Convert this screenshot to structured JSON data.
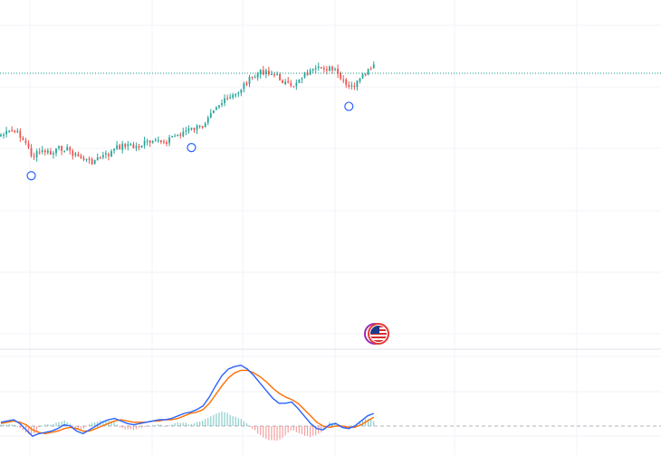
{
  "colors": {
    "up": "#26a69a",
    "down": "#ef5350",
    "grid": "#f0f3fa",
    "separator": "#e0e3eb",
    "price_line": "#089981",
    "macd_line": "#2962ff",
    "signal_line": "#ff6d00",
    "marker": "#2962ff",
    "zero_line": "#b2b5be"
  },
  "icons": {
    "event_badge": "us-flag-economic-event-icon",
    "dividend_markers": "circle-marker-icon"
  },
  "chart_data": [
    {
      "type": "candlestick",
      "pane": "price",
      "title": "",
      "grid": true,
      "last_price_line": true,
      "price_path": [
        0.4,
        0.39,
        0.38,
        0.4,
        0.45,
        0.52,
        0.5,
        0.49,
        0.51,
        0.48,
        0.47,
        0.49,
        0.52,
        0.53,
        0.55,
        0.54,
        0.52,
        0.51,
        0.48,
        0.46,
        0.45,
        0.47,
        0.46,
        0.44,
        0.45,
        0.43,
        0.44,
        0.41,
        0.4,
        0.38,
        0.37,
        0.36,
        0.35,
        0.27,
        0.24,
        0.22,
        0.2,
        0.18,
        0.14,
        0.1,
        0.08,
        0.05,
        0.04,
        0.06,
        0.08,
        0.11,
        0.14,
        0.09,
        0.06,
        0.05,
        0.04,
        0.02,
        0.03,
        0.05,
        0.1,
        0.14,
        0.12,
        0.09,
        0.05,
        0.02
      ],
      "markers_at_index": [
        5,
        30,
        55
      ],
      "event_badge_at_index": 58
    },
    {
      "type": "macd",
      "pane": "indicator",
      "series": [
        {
          "role": "macd",
          "values": [
            0.3,
            0.4,
            0.5,
            0.2,
            -0.3,
            -0.8,
            -0.6,
            -0.5,
            -0.4,
            -0.2,
            0.1,
            0.0,
            -0.4,
            -0.6,
            -0.3,
            0.0,
            0.3,
            0.5,
            0.6,
            0.4,
            0.2,
            0.1,
            0.2,
            0.3,
            0.4,
            0.5,
            0.5,
            0.6,
            0.8,
            1.0,
            1.1,
            1.3,
            1.6,
            2.3,
            3.2,
            4.0,
            4.5,
            4.7,
            4.8,
            4.5,
            4.0,
            3.4,
            2.8,
            2.2,
            1.8,
            1.8,
            1.9,
            1.4,
            0.8,
            0.2,
            -0.2,
            -0.3,
            0.1,
            0.2,
            -0.1,
            -0.2,
            0.0,
            0.4,
            0.8,
            1.0
          ]
        },
        {
          "role": "signal",
          "values": [
            0.2,
            0.3,
            0.4,
            0.3,
            0.1,
            -0.3,
            -0.5,
            -0.6,
            -0.5,
            -0.4,
            -0.2,
            -0.1,
            -0.2,
            -0.4,
            -0.4,
            -0.2,
            0.0,
            0.2,
            0.4,
            0.5,
            0.4,
            0.3,
            0.3,
            0.3,
            0.4,
            0.4,
            0.5,
            0.5,
            0.6,
            0.8,
            1.0,
            1.1,
            1.3,
            1.8,
            2.5,
            3.2,
            3.8,
            4.2,
            4.4,
            4.4,
            4.2,
            3.9,
            3.5,
            3.0,
            2.6,
            2.3,
            2.1,
            1.8,
            1.3,
            0.8,
            0.3,
            0.0,
            -0.1,
            0.0,
            0.0,
            -0.1,
            -0.1,
            0.1,
            0.4,
            0.7
          ]
        }
      ],
      "zero_line": true
    }
  ]
}
